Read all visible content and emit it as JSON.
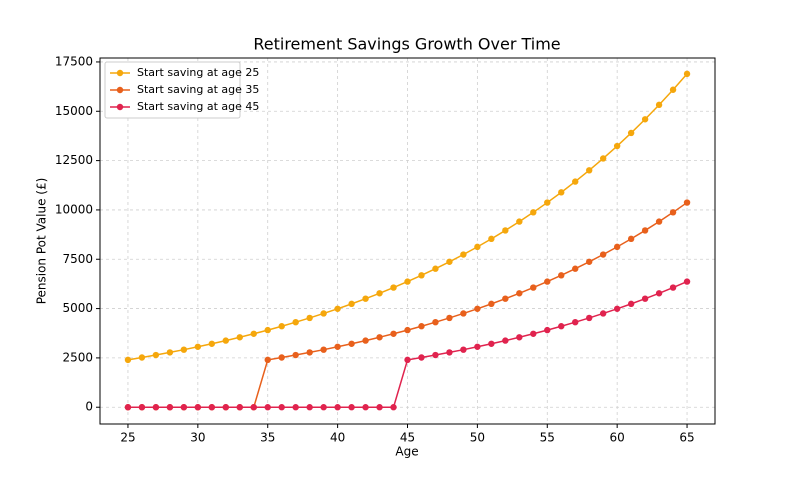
{
  "chart_data": {
    "type": "line",
    "title": "Retirement Savings Growth Over Time",
    "xlabel": "Age",
    "ylabel": "Pension Pot Value (£)",
    "x": [
      25,
      26,
      27,
      28,
      29,
      30,
      31,
      32,
      33,
      34,
      35,
      36,
      37,
      38,
      39,
      40,
      41,
      42,
      43,
      44,
      45,
      46,
      47,
      48,
      49,
      50,
      51,
      52,
      53,
      54,
      55,
      56,
      57,
      58,
      59,
      60,
      61,
      62,
      63,
      64,
      65
    ],
    "series": [
      {
        "name": "Start saving at age 25",
        "color": "#f5a70c",
        "values": [
          2400,
          2520,
          2646,
          2778,
          2917,
          3063,
          3216,
          3377,
          3546,
          3723,
          3909,
          4105,
          4310,
          4526,
          4752,
          4989,
          5239,
          5501,
          5776,
          6065,
          6368,
          6686,
          7021,
          7372,
          7740,
          8127,
          8534,
          8960,
          9408,
          9879,
          10373,
          10891,
          11436,
          12008,
          12608,
          13239,
          13900,
          14595,
          15325,
          16091,
          16896
        ]
      },
      {
        "name": "Start saving at age 35",
        "color": "#e8601c",
        "values": [
          0,
          0,
          0,
          0,
          0,
          0,
          0,
          0,
          0,
          0,
          2400,
          2520,
          2646,
          2778,
          2917,
          3063,
          3216,
          3377,
          3546,
          3723,
          3909,
          4105,
          4310,
          4526,
          4752,
          4989,
          5239,
          5501,
          5776,
          6065,
          6368,
          6686,
          7021,
          7372,
          7740,
          8127,
          8534,
          8960,
          9408,
          9879,
          10373
        ]
      },
      {
        "name": "Start saving at age 45",
        "color": "#e0234e",
        "values": [
          0,
          0,
          0,
          0,
          0,
          0,
          0,
          0,
          0,
          0,
          0,
          0,
          0,
          0,
          0,
          0,
          0,
          0,
          0,
          0,
          2400,
          2520,
          2646,
          2778,
          2917,
          3063,
          3216,
          3377,
          3546,
          3723,
          3909,
          4105,
          4310,
          4526,
          4752,
          4989,
          5239,
          5501,
          5776,
          6065,
          6368
        ]
      }
    ],
    "xlim": [
      23,
      67
    ],
    "xticks": [
      25,
      30,
      35,
      40,
      45,
      50,
      55,
      60,
      65
    ],
    "ylim": [
      -850,
      17700
    ],
    "yticks": [
      0,
      2500,
      5000,
      7500,
      10000,
      12500,
      15000,
      17500
    ],
    "grid": true,
    "legend": "upper left"
  }
}
